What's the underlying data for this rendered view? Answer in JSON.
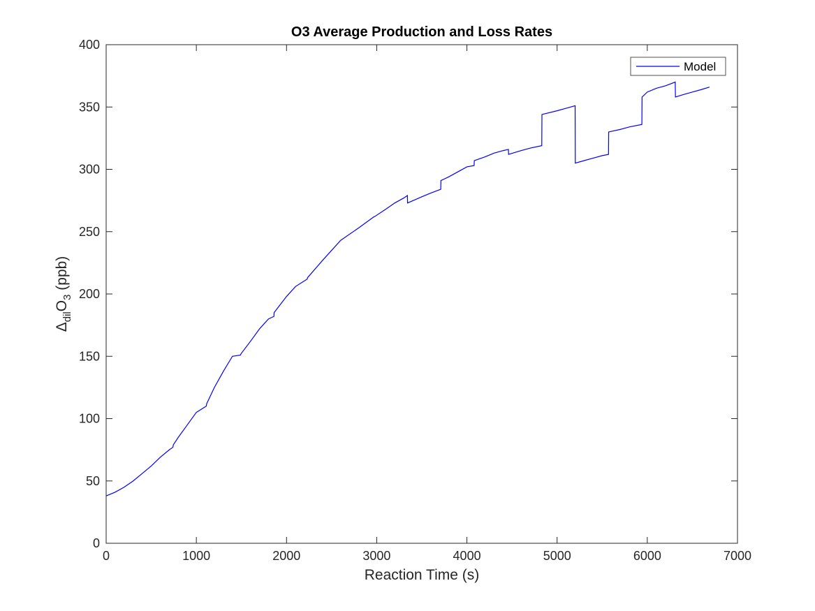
{
  "chart_data": {
    "type": "line",
    "title": "O3 Average Production and Loss Rates",
    "xlabel": "Reaction Time (s)",
    "ylabel": {
      "delta": "Δ",
      "delta_sub": "dil",
      "species": "O",
      "species_sub": "3",
      "unit": " (ppb)"
    },
    "xlim": [
      0,
      7000
    ],
    "ylim": [
      0,
      400
    ],
    "xticks": [
      0,
      1000,
      2000,
      3000,
      4000,
      5000,
      6000,
      7000
    ],
    "yticks": [
      0,
      50,
      100,
      150,
      200,
      250,
      300,
      350,
      400
    ],
    "grid": false,
    "legend_position": "top-right",
    "series": [
      {
        "name": "Model",
        "color": "#0000ff",
        "x": [
          0,
          100,
          200,
          300,
          400,
          500,
          600,
          700,
          740,
          745,
          800,
          900,
          1000,
          1110,
          1115,
          1200,
          1300,
          1400,
          1490,
          1495,
          1600,
          1700,
          1800,
          1860,
          1862,
          2000,
          2100,
          2230,
          2232,
          2400,
          2600,
          2800,
          2970,
          2975,
          3100,
          3200,
          3300,
          3340,
          3342,
          3500,
          3600,
          3710,
          3712,
          3800,
          3900,
          4000,
          4080,
          4082,
          4200,
          4300,
          4400,
          4460,
          4462,
          4600,
          4700,
          4830,
          4832,
          5000,
          5100,
          5200,
          5202,
          5300,
          5400,
          5500,
          5570,
          5572,
          5700,
          5800,
          5940,
          5942,
          6000,
          6100,
          6200,
          6310,
          6312,
          6400,
          6500,
          6600,
          6690
        ],
        "y": [
          38,
          41,
          45,
          50,
          56,
          62,
          69,
          75,
          77,
          79,
          85,
          95,
          105,
          110,
          112,
          125,
          138,
          150,
          151,
          152,
          162,
          172,
          180,
          182,
          185,
          198,
          206,
          212,
          213,
          227,
          243,
          253,
          262,
          262,
          268,
          273,
          277,
          279,
          273,
          278,
          281,
          284,
          291,
          294,
          298,
          302,
          303,
          307,
          310,
          313,
          315,
          316,
          312,
          315,
          317,
          319,
          344,
          347,
          349,
          351,
          305,
          307,
          309,
          311,
          312,
          330,
          332,
          334,
          336,
          358,
          362,
          365,
          367,
          370,
          358,
          360,
          362,
          364,
          366
        ]
      }
    ]
  }
}
